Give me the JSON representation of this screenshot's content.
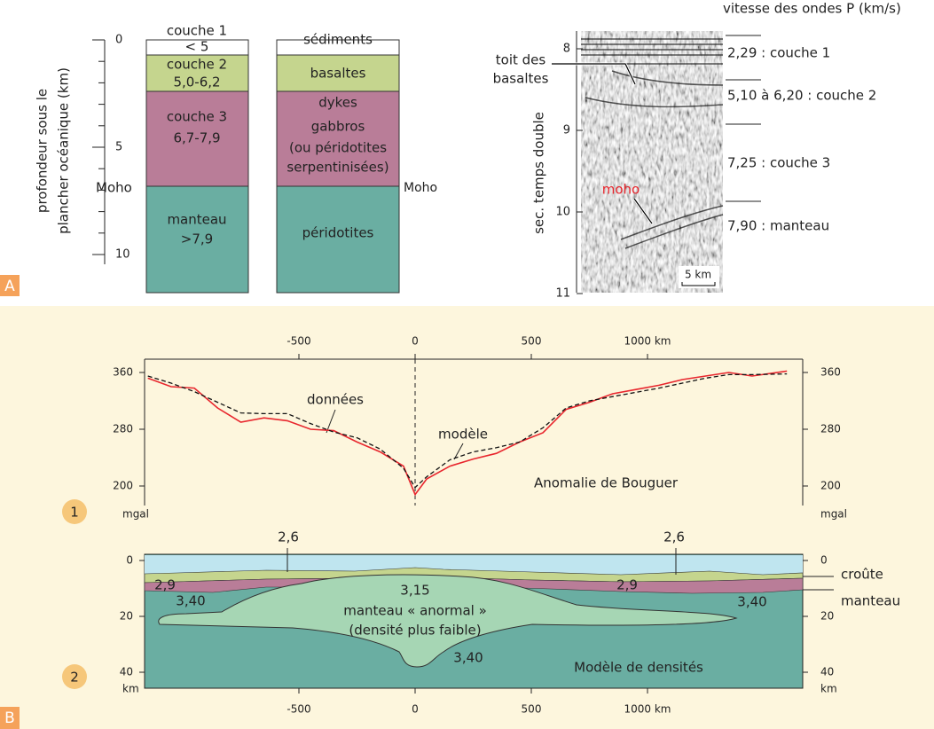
{
  "panel_a": {
    "label": "A",
    "depth_axis": {
      "title": [
        "profondeur sous le",
        "plancher océanique (km)"
      ],
      "ticks": [
        0,
        5,
        10
      ],
      "moho": "Moho"
    },
    "velocity_column": [
      "couche 1",
      "< 5",
      "couche 2",
      "5,0-6,2",
      "couche 3",
      "6,7-7,9",
      "manteau",
      ">7,9"
    ],
    "rock_column": {
      "layers": [
        "sédiments",
        "basaltes",
        "dykes",
        "gabbros",
        "(ou péridotites",
        "serpentinisées)",
        "péridotites"
      ],
      "moho": "Moho"
    },
    "seismic": {
      "title": "vitesse des ondes P (km/s)",
      "axis_title": "sec. temps double",
      "ticks": [
        8,
        9,
        10,
        11
      ],
      "annotations": [
        "toit des",
        "basaltes",
        "moho"
      ],
      "scale": "5 km",
      "velocities": [
        "2,29 : couche 1",
        "5,10 à 6,20 : couche 2",
        "7,25 : couche 3",
        "7,90 : manteau"
      ]
    }
  },
  "panel_b": {
    "label": "B",
    "bouguer": {
      "badge": "1",
      "x": [
        -1150,
        -1050,
        -950,
        -850,
        -750,
        -650,
        -550,
        -450,
        -350,
        -250,
        -150,
        -50,
        0,
        50,
        150,
        250,
        350,
        450,
        550,
        650,
        750,
        850,
        950,
        1050,
        1150,
        1250,
        1350,
        1450,
        1600
      ],
      "data": [
        352,
        340,
        338,
        310,
        290,
        296,
        292,
        280,
        278,
        262,
        248,
        228,
        188,
        210,
        228,
        238,
        246,
        262,
        275,
        308,
        318,
        330,
        336,
        342,
        350,
        355,
        360,
        355,
        362
      ],
      "model": [
        355,
        345,
        333,
        318,
        303,
        302,
        302,
        288,
        276,
        268,
        252,
        225,
        198,
        213,
        237,
        248,
        254,
        262,
        282,
        310,
        320,
        326,
        332,
        338,
        345,
        352,
        357,
        357,
        358
      ],
      "xticks": [
        -500,
        0,
        500,
        {
          "value": 1000,
          "label": "1000 km"
        }
      ],
      "yticks": [
        200,
        280,
        360
      ],
      "unit": "mgal",
      "labels": [
        "données",
        "modèle",
        "Anomalie de Bouguer"
      ]
    },
    "density": {
      "badge": "2",
      "xticks": [
        -500,
        0,
        500,
        {
          "value": 1000,
          "label": "1000 km"
        }
      ],
      "yticks": [
        0,
        20,
        40
      ],
      "unit": "km",
      "labels": [
        "2,6",
        "2,6",
        "2,9",
        "2,9",
        "3,15",
        "manteau « anormal »",
        "(densité plus faible)",
        "3,40",
        "3,40",
        "3,40",
        "Modèle de densités",
        "croûte",
        "manteau"
      ]
    }
  }
}
